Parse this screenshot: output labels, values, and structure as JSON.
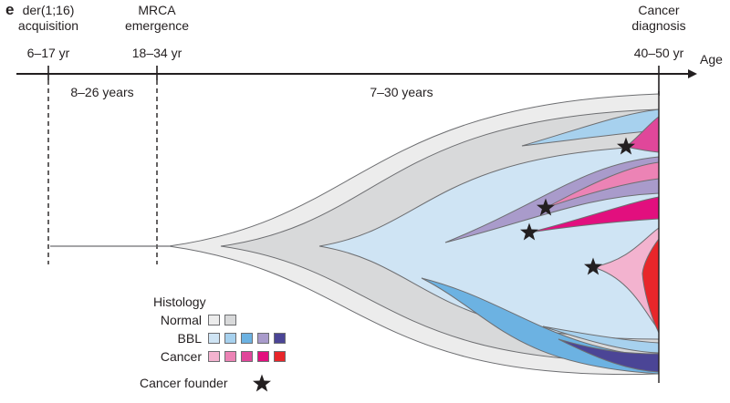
{
  "panel_label": "e",
  "timeline": {
    "axis_label": "Age",
    "events": [
      {
        "name": "der(1;16)",
        "sub": "acquisition",
        "age": "6–17 yr"
      },
      {
        "name": "MRCA",
        "sub": "emergence",
        "age": "18–34 yr"
      },
      {
        "name": "Cancer",
        "sub": "diagnosis",
        "age": "40–50 yr"
      }
    ],
    "intervals": [
      "8–26 years",
      "7–30 years"
    ]
  },
  "legend": {
    "title": "Histology",
    "rows": [
      {
        "label": "Normal",
        "colors": [
          "#ececec",
          "#d8d9da"
        ]
      },
      {
        "label": "BBL",
        "colors": [
          "#cfe4f4",
          "#a7d1ee",
          "#6cb2e2",
          "#a99bcb",
          "#4b4596"
        ]
      },
      {
        "label": "Cancer",
        "colors": [
          "#f3b3cf",
          "#ec83b5",
          "#e0479a",
          "#e20f7e",
          "#e8262a"
        ]
      }
    ],
    "founder_label": "Cancer founder",
    "founder_icon": "star-icon"
  }
}
